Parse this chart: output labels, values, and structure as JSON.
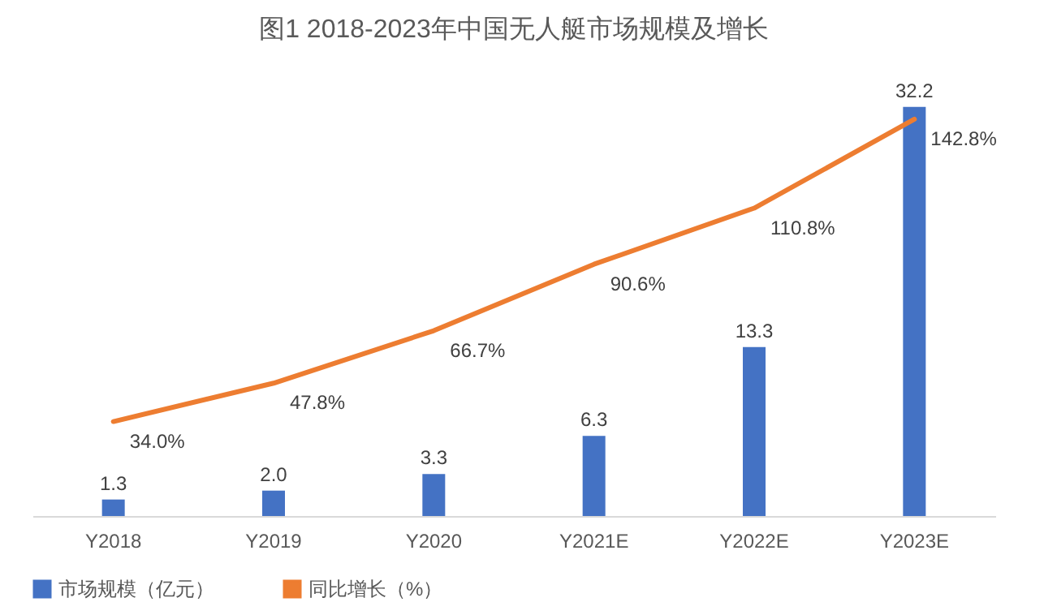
{
  "chart_data": {
    "type": "bar",
    "title": "图1  2018-2023年中国无人艇市场规模及增长",
    "categories": [
      "Y2018",
      "Y2019",
      "Y2020",
      "Y2021E",
      "Y2022E",
      "Y2023E"
    ],
    "series": [
      {
        "name": "市场规模（亿元）",
        "color": "#4472c4",
        "values": [
          1.3,
          2.0,
          3.3,
          6.3,
          13.3,
          32.2
        ],
        "value_labels": [
          "1.3",
          "2.0",
          "3.3",
          "6.3",
          "13.3",
          "32.2"
        ]
      },
      {
        "name": "同比增长（%）",
        "type": "line",
        "axis": "y2",
        "color": "#ed7d31",
        "values": [
          34.0,
          47.8,
          66.7,
          90.6,
          110.8,
          142.8
        ],
        "value_labels": [
          "34.0%",
          "47.8%",
          "66.7%",
          "90.6%",
          "110.8%",
          "142.8%"
        ]
      }
    ],
    "tick_labels": "x",
    "legend": "bottom"
  }
}
